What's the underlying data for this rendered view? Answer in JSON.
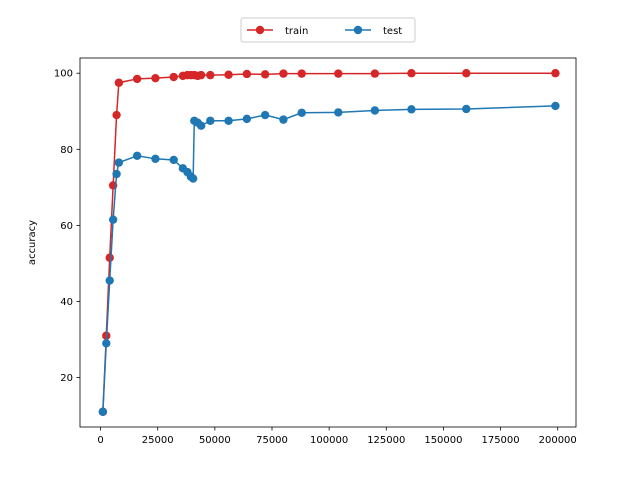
{
  "chart_data": {
    "type": "line",
    "title": "",
    "xlabel": "",
    "ylabel": "accuracy",
    "xlim": [
      -9000,
      208000
    ],
    "ylim": [
      7,
      104
    ],
    "xticks": [
      0,
      25000,
      50000,
      75000,
      100000,
      125000,
      150000,
      175000,
      200000
    ],
    "yticks": [
      20,
      40,
      60,
      80,
      100
    ],
    "grid": false,
    "legend_position": "top-center",
    "series": [
      {
        "name": "train",
        "color": "#d62728",
        "marker": "circle",
        "points": [
          [
            1000,
            11
          ],
          [
            2500,
            31
          ],
          [
            4000,
            51.5
          ],
          [
            5500,
            70.5
          ],
          [
            7000,
            89
          ],
          [
            8000,
            97.5
          ],
          [
            16000,
            98.5
          ],
          [
            24000,
            98.7
          ],
          [
            32000,
            99
          ],
          [
            36000,
            99.3
          ],
          [
            38000,
            99.5
          ],
          [
            39500,
            99.5
          ],
          [
            41000,
            99.5
          ],
          [
            42500,
            99.3
          ],
          [
            44000,
            99.5
          ],
          [
            48000,
            99.5
          ],
          [
            56000,
            99.6
          ],
          [
            64000,
            99.8
          ],
          [
            72000,
            99.7
          ],
          [
            80000,
            99.9
          ],
          [
            88000,
            99.9
          ],
          [
            104000,
            99.9
          ],
          [
            120000,
            99.9
          ],
          [
            136000,
            100
          ],
          [
            160000,
            100
          ],
          [
            199000,
            100
          ]
        ]
      },
      {
        "name": "test",
        "color": "#1f77b4",
        "marker": "circle",
        "points": [
          [
            1000,
            11
          ],
          [
            2500,
            29
          ],
          [
            4000,
            45.5
          ],
          [
            5500,
            61.5
          ],
          [
            7000,
            73.5
          ],
          [
            8000,
            76.5
          ],
          [
            16000,
            78.3
          ],
          [
            24000,
            77.5
          ],
          [
            32000,
            77.2
          ],
          [
            36000,
            75
          ],
          [
            38000,
            74
          ],
          [
            39500,
            72.8
          ],
          [
            40500,
            72.3
          ],
          [
            41000,
            87.5
          ],
          [
            42500,
            87
          ],
          [
            44000,
            86.2
          ],
          [
            48000,
            87.5
          ],
          [
            56000,
            87.5
          ],
          [
            64000,
            88
          ],
          [
            72000,
            89
          ],
          [
            80000,
            87.8
          ],
          [
            88000,
            89.6
          ],
          [
            104000,
            89.7
          ],
          [
            120000,
            90.2
          ],
          [
            136000,
            90.5
          ],
          [
            160000,
            90.6
          ],
          [
            199000,
            91.4
          ]
        ]
      }
    ]
  }
}
